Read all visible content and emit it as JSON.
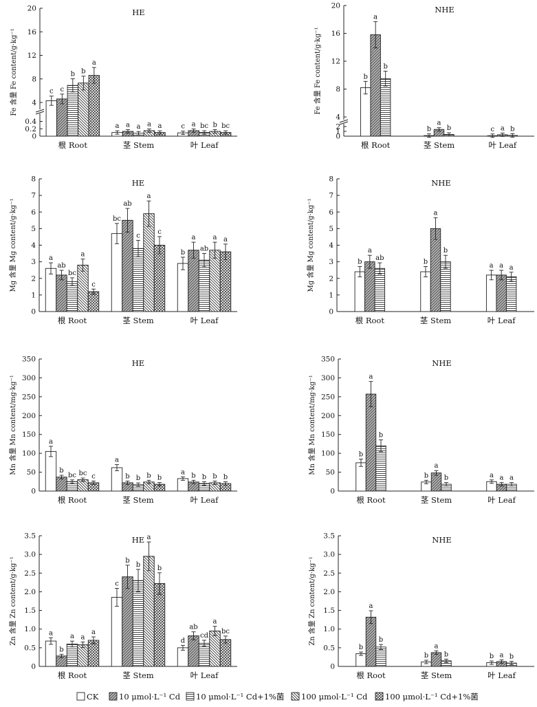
{
  "panels": [
    {
      "title": "HE",
      "ylabel": "Fe 含量 Fe content/g·kg⁻¹",
      "ytick_labels": [
        "0",
        "0.2",
        "0.4",
        "4",
        "8",
        "12",
        "16",
        "20"
      ],
      "yaxis_break": true,
      "categories": [
        "根 Root",
        "茎 Stem",
        "叶 Leaf"
      ],
      "series_values": {
        "CK": [
          4.3,
          0.1,
          0.09
        ],
        "10 μmol·L⁻¹ Cd": [
          4.6,
          0.13,
          0.15
        ],
        "10 μmol·L⁻¹ Cd+1%菌": [
          6.9,
          0.08,
          0.1
        ],
        "100 μmol·L⁻¹ Cd": [
          7.3,
          0.15,
          0.13
        ],
        "100 μmol·L⁻¹ Cd+1%菌": [
          8.6,
          0.1,
          0.1
        ]
      },
      "letters": [
        [
          "c",
          "c",
          "b",
          "b",
          "a"
        ],
        [
          "a",
          "a",
          "a",
          "a",
          "a"
        ],
        [
          "c",
          "a",
          "bc",
          "b",
          "bc"
        ]
      ]
    },
    {
      "title": "NHE",
      "ylabel": "Fe 含量 Fe content/g·kg⁻¹",
      "ytick_labels": [
        "0",
        "1",
        "2",
        "4",
        "8",
        "12",
        "16",
        "20"
      ],
      "yaxis_break": true,
      "categories": [
        "根 Root",
        "茎 Stem",
        "叶 Leaf"
      ],
      "series_values": {
        "CK": [
          8.2,
          0.12,
          0.1
        ],
        "10 μmol·L⁻¹ Cd": [
          15.8,
          1.4,
          0.3
        ],
        "10 μmol·L⁻¹ Cd+1%菌": [
          9.5,
          0.35,
          0.15
        ]
      },
      "letters": [
        [
          "b",
          "a",
          "b"
        ],
        [
          "b",
          "a",
          "b"
        ],
        [
          "c",
          "a",
          "b"
        ]
      ]
    },
    {
      "title": "HE",
      "ylabel": "Mg 含量 Mg content/g·kg⁻¹",
      "ylim": [
        0,
        8
      ],
      "ytick_labels": [
        "0",
        "1",
        "2",
        "3",
        "4",
        "5",
        "6",
        "7",
        "8"
      ],
      "categories": [
        "根 Root",
        "茎 Stem",
        "叶 Leaf"
      ],
      "series_values": {
        "CK": [
          2.6,
          4.7,
          2.9
        ],
        "10 μmol·L⁻¹ Cd": [
          2.2,
          5.5,
          3.7
        ],
        "10 μmol·L⁻¹ Cd+1%菌": [
          1.8,
          3.8,
          3.1
        ],
        "100 μmol·L⁻¹ Cd": [
          2.8,
          5.9,
          3.7
        ],
        "100 μmol·L⁻¹ Cd+1%菌": [
          1.2,
          4.0,
          3.6
        ]
      },
      "letters": [
        [
          "a",
          "ab",
          "bc",
          "a",
          "c"
        ],
        [
          "bc",
          "ab",
          "c",
          "a",
          "c"
        ],
        [
          "b",
          "a",
          "ab",
          "a",
          "a"
        ]
      ]
    },
    {
      "title": "NHE",
      "ylabel": "Mg 含量 Mg content/g·kg⁻¹",
      "ylim": [
        0,
        8
      ],
      "ytick_labels": [
        "0",
        "1",
        "2",
        "3",
        "4",
        "5",
        "6",
        "7",
        "8"
      ],
      "categories": [
        "根 Root",
        "茎 Stem",
        "叶 Leaf"
      ],
      "series_values": {
        "CK": [
          2.4,
          2.4,
          2.2
        ],
        "10 μmol·L⁻¹ Cd": [
          3.0,
          5.0,
          2.2
        ],
        "10 μmol·L⁻¹ Cd+1%菌": [
          2.6,
          3.0,
          2.1
        ]
      },
      "letters": [
        [
          "b",
          "a",
          "ab"
        ],
        [
          "b",
          "a",
          "b"
        ],
        [
          "a",
          "a",
          "a"
        ]
      ]
    },
    {
      "title": "HE",
      "ylabel": "Mn 含量 Mn content/mg·kg⁻¹",
      "ylim": [
        0,
        350
      ],
      "ytick_labels": [
        "0",
        "50",
        "100",
        "150",
        "200",
        "250",
        "300",
        "350"
      ],
      "categories": [
        "根 Root",
        "茎 Stem",
        "叶 Leaf"
      ],
      "series_values": {
        "CK": [
          105,
          62,
          33
        ],
        "10 μmol·L⁻¹ Cd": [
          37,
          22,
          24
        ],
        "10 μmol·L⁻¹ Cd+1%菌": [
          25,
          17,
          20
        ],
        "100 μmol·L⁻¹ Cd": [
          30,
          24,
          22
        ],
        "100 μmol·L⁻¹ Cd+1%菌": [
          22,
          18,
          20
        ]
      },
      "letters": [
        [
          "a",
          "b",
          "bc",
          "bc",
          "c"
        ],
        [
          "a",
          "b",
          "b",
          "b",
          "b"
        ],
        [
          "a",
          "b",
          "b",
          "b",
          "b"
        ]
      ]
    },
    {
      "title": "NHE",
      "ylabel": "Mn 含量 Mn content/mg·kg⁻¹",
      "ylim": [
        0,
        350
      ],
      "ytick_labels": [
        "0",
        "50",
        "100",
        "150",
        "200",
        "250",
        "300",
        "350"
      ],
      "categories": [
        "根 Root",
        "茎 Stem",
        "叶 Leaf"
      ],
      "series_values": {
        "CK": [
          75,
          24,
          25
        ],
        "10 μmol·L⁻¹ Cd": [
          257,
          48,
          18
        ],
        "10 μmol·L⁻¹ Cd+1%菌": [
          120,
          18,
          18
        ]
      },
      "letters": [
        [
          "b",
          "a",
          "b"
        ],
        [
          "b",
          "a",
          "b"
        ],
        [
          "a",
          "a",
          "a"
        ]
      ]
    },
    {
      "title": "HE",
      "ylabel": "Zn 含量 Zn content/g·kg⁻¹",
      "ylim": [
        0,
        3.5
      ],
      "ytick_labels": [
        "0",
        "0.5",
        "1.0",
        "1.5",
        "2.0",
        "2.5",
        "3.0",
        "3.5"
      ],
      "categories": [
        "根 Root",
        "茎 Stem",
        "叶 Leaf"
      ],
      "series_values": {
        "CK": [
          0.68,
          1.85,
          0.5
        ],
        "10 μmol·L⁻¹ Cd": [
          0.28,
          2.4,
          0.82
        ],
        "10 μmol·L⁻¹ Cd+1%菌": [
          0.6,
          2.3,
          0.62
        ],
        "100 μmol·L⁻¹ Cd": [
          0.58,
          2.95,
          0.95
        ],
        "100 μmol·L⁻¹ Cd+1%菌": [
          0.7,
          2.22,
          0.72
        ]
      },
      "letters": [
        [
          "a",
          "b",
          "a",
          "a",
          "a"
        ],
        [
          "c",
          "b",
          "b",
          "a",
          "b"
        ],
        [
          "d",
          "ab",
          "cd",
          "a",
          "bc"
        ]
      ]
    },
    {
      "title": "NHE",
      "ylabel": "Zn 含量 Zn content/g·kg⁻¹",
      "ylim": [
        0,
        3.5
      ],
      "ytick_labels": [
        "0",
        "0.5",
        "1.0",
        "1.5",
        "2.0",
        "2.5",
        "3.0",
        "3.5"
      ],
      "categories": [
        "根 Root",
        "茎 Stem",
        "叶 Leaf"
      ],
      "series_values": {
        "CK": [
          0.34,
          0.12,
          0.1
        ],
        "10 μmol·L⁻¹ Cd": [
          1.32,
          0.37,
          0.13
        ],
        "10 μmol·L⁻¹ Cd+1%菌": [
          0.52,
          0.15,
          0.09
        ]
      },
      "letters": [
        [
          "b",
          "a",
          "b"
        ],
        [
          "b",
          "a",
          "b"
        ],
        [
          "b",
          "a",
          "b"
        ]
      ]
    }
  ],
  "legend": {
    "placement": "bottom",
    "items": [
      "CK",
      "10 μmol·L⁻¹ Cd",
      "10 μmol·L⁻¹ Cd+1%菌",
      "100 μmol·L⁻¹ Cd",
      "100 μmol·L⁻¹ Cd+1%菌"
    ]
  },
  "chart_data": [
    {
      "type": "bar",
      "title": "HE",
      "ylabel": "Fe 含量 Fe content/g·kg⁻¹",
      "categories": [
        "根 Root",
        "茎 Stem",
        "叶 Leaf"
      ],
      "series": [
        {
          "name": "CK",
          "values": [
            4.3,
            0.1,
            0.09
          ]
        },
        {
          "name": "10 μmol·L⁻¹ Cd",
          "values": [
            4.6,
            0.13,
            0.15
          ]
        },
        {
          "name": "10 μmol·L⁻¹ Cd+1%菌",
          "values": [
            6.9,
            0.08,
            0.1
          ]
        },
        {
          "name": "100 μmol·L⁻¹ Cd",
          "values": [
            7.3,
            0.15,
            0.13
          ]
        },
        {
          "name": "100 μmol·L⁻¹ Cd+1%菌",
          "values": [
            8.6,
            0.1,
            0.1
          ]
        }
      ],
      "ylim": [
        0,
        20
      ],
      "y_axis_break": true
    },
    {
      "type": "bar",
      "title": "NHE",
      "ylabel": "Fe 含量 Fe content/g·kg⁻¹",
      "categories": [
        "根 Root",
        "茎 Stem",
        "叶 Leaf"
      ],
      "series": [
        {
          "name": "CK",
          "values": [
            8.2,
            0.12,
            0.1
          ]
        },
        {
          "name": "10 μmol·L⁻¹ Cd",
          "values": [
            15.8,
            1.4,
            0.3
          ]
        },
        {
          "name": "10 μmol·L⁻¹ Cd+1%菌",
          "values": [
            9.5,
            0.35,
            0.15
          ]
        }
      ],
      "ylim": [
        0,
        20
      ],
      "y_axis_break": true
    },
    {
      "type": "bar",
      "title": "HE",
      "ylabel": "Mg 含量 Mg content/g·kg⁻¹",
      "categories": [
        "根 Root",
        "茎 Stem",
        "叶 Leaf"
      ],
      "series": [
        {
          "name": "CK",
          "values": [
            2.6,
            4.7,
            2.9
          ]
        },
        {
          "name": "10 μmol·L⁻¹ Cd",
          "values": [
            2.2,
            5.5,
            3.7
          ]
        },
        {
          "name": "10 μmol·L⁻¹ Cd+1%菌",
          "values": [
            1.8,
            3.8,
            3.1
          ]
        },
        {
          "name": "100 μmol·L⁻¹ Cd",
          "values": [
            2.8,
            5.9,
            3.7
          ]
        },
        {
          "name": "100 μmol·L⁻¹ Cd+1%菌",
          "values": [
            1.2,
            4.0,
            3.6
          ]
        }
      ],
      "ylim": [
        0,
        8
      ]
    },
    {
      "type": "bar",
      "title": "NHE",
      "ylabel": "Mg 含量 Mg content/g·kg⁻¹",
      "categories": [
        "根 Root",
        "茎 Stem",
        "叶 Leaf"
      ],
      "series": [
        {
          "name": "CK",
          "values": [
            2.4,
            2.4,
            2.2
          ]
        },
        {
          "name": "10 μmol·L⁻¹ Cd",
          "values": [
            3.0,
            5.0,
            2.2
          ]
        },
        {
          "name": "10 μmol·L⁻¹ Cd+1%菌",
          "values": [
            2.6,
            3.0,
            2.1
          ]
        }
      ],
      "ylim": [
        0,
        8
      ]
    },
    {
      "type": "bar",
      "title": "HE",
      "ylabel": "Mn 含量 Mn content/mg·kg⁻¹",
      "categories": [
        "根 Root",
        "茎 Stem",
        "叶 Leaf"
      ],
      "series": [
        {
          "name": "CK",
          "values": [
            105,
            62,
            33
          ]
        },
        {
          "name": "10 μmol·L⁻¹ Cd",
          "values": [
            37,
            22,
            24
          ]
        },
        {
          "name": "10 μmol·L⁻¹ Cd+1%菌",
          "values": [
            25,
            17,
            20
          ]
        },
        {
          "name": "100 μmol·L⁻¹ Cd",
          "values": [
            30,
            24,
            22
          ]
        },
        {
          "name": "100 μmol·L⁻¹ Cd+1%菌",
          "values": [
            22,
            18,
            20
          ]
        }
      ],
      "ylim": [
        0,
        350
      ]
    },
    {
      "type": "bar",
      "title": "NHE",
      "ylabel": "Mn 含量 Mn content/mg·kg⁻¹",
      "categories": [
        "根 Root",
        "茎 Stem",
        "叶 Leaf"
      ],
      "series": [
        {
          "name": "CK",
          "values": [
            75,
            24,
            25
          ]
        },
        {
          "name": "10 μmol·L⁻¹ Cd",
          "values": [
            257,
            48,
            18
          ]
        },
        {
          "name": "10 μmol·L⁻¹ Cd+1%菌",
          "values": [
            120,
            18,
            18
          ]
        }
      ],
      "ylim": [
        0,
        350
      ]
    },
    {
      "type": "bar",
      "title": "HE",
      "ylabel": "Zn 含量 Zn content/g·kg⁻¹",
      "categories": [
        "根 Root",
        "茎 Stem",
        "叶 Leaf"
      ],
      "series": [
        {
          "name": "CK",
          "values": [
            0.68,
            1.85,
            0.5
          ]
        },
        {
          "name": "10 μmol·L⁻¹ Cd",
          "values": [
            0.28,
            2.4,
            0.82
          ]
        },
        {
          "name": "10 μmol·L⁻¹ Cd+1%菌",
          "values": [
            0.6,
            2.3,
            0.62
          ]
        },
        {
          "name": "100 μmol·L⁻¹ Cd",
          "values": [
            0.58,
            2.95,
            0.95
          ]
        },
        {
          "name": "100 μmol·L⁻¹ Cd+1%菌",
          "values": [
            0.7,
            2.22,
            0.72
          ]
        }
      ],
      "ylim": [
        0,
        3.5
      ]
    },
    {
      "type": "bar",
      "title": "NHE",
      "ylabel": "Zn 含量 Zn content/g·kg⁻¹",
      "categories": [
        "根 Root",
        "茎 Stem",
        "叶 Leaf"
      ],
      "series": [
        {
          "name": "CK",
          "values": [
            0.34,
            0.12,
            0.1
          ]
        },
        {
          "name": "10 μmol·L⁻¹ Cd",
          "values": [
            1.32,
            0.37,
            0.13
          ]
        },
        {
          "name": "10 μmol·L⁻¹ Cd+1%菌",
          "values": [
            0.52,
            0.15,
            0.09
          ]
        }
      ],
      "ylim": [
        0,
        3.5
      ]
    }
  ]
}
